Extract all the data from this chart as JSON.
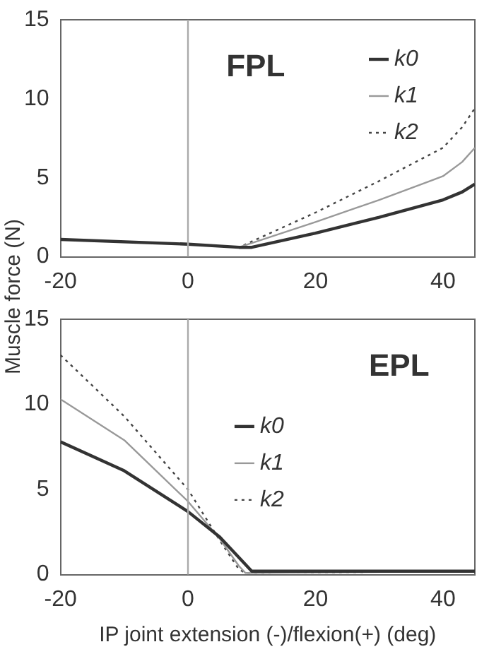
{
  "chart_data": [
    {
      "type": "line",
      "title": "FPL",
      "ylabel": "Muscle force (N)",
      "xlim": [
        -20,
        45
      ],
      "xticks": [
        -20,
        0,
        20,
        40
      ],
      "ylim": [
        0,
        15
      ],
      "yticks": [
        0,
        5,
        10,
        15
      ],
      "legend": "top right",
      "grid": false,
      "marker": "none",
      "ref_lines": [
        {
          "axis": "x",
          "value": 0,
          "color": "#aaaaaa"
        }
      ],
      "series": [
        {
          "name": "k0",
          "color": "#333333",
          "line_style": "solid",
          "x": [
            -20,
            0,
            8,
            10,
            20,
            30,
            40,
            43,
            45
          ],
          "values": [
            1.1,
            0.8,
            0.6,
            0.6,
            1.5,
            2.5,
            3.6,
            4.1,
            4.6
          ]
        },
        {
          "name": "k1",
          "color": "#999999",
          "line_style": "solid",
          "x": [
            -20,
            0,
            8,
            20,
            30,
            40,
            43,
            45
          ],
          "values": [
            1.1,
            0.8,
            0.6,
            2.2,
            3.6,
            5.1,
            6.0,
            6.9
          ]
        },
        {
          "name": "k2",
          "color": "#444444",
          "line_style": "dotted",
          "x": [
            -20,
            0,
            8,
            20,
            30,
            40,
            43,
            45
          ],
          "values": [
            1.1,
            0.8,
            0.6,
            2.8,
            4.8,
            6.9,
            8.2,
            9.4
          ]
        }
      ]
    },
    {
      "type": "line",
      "title": "EPL",
      "xlabel": "IP joint extension (-)/flexion(+) (deg)",
      "xlim": [
        -20,
        45
      ],
      "xticks": [
        -20,
        0,
        20,
        40
      ],
      "ylim": [
        0,
        15
      ],
      "yticks": [
        0,
        5,
        10,
        15
      ],
      "legend": "center",
      "grid": false,
      "marker": "none",
      "ref_lines": [
        {
          "axis": "x",
          "value": 0,
          "color": "#aaaaaa"
        }
      ],
      "series": [
        {
          "name": "k0",
          "color": "#333333",
          "line_style": "solid",
          "x": [
            -20,
            -10,
            0,
            5,
            10,
            11,
            45
          ],
          "values": [
            7.8,
            6.1,
            3.7,
            2.2,
            0.2,
            0.2,
            0.2
          ]
        },
        {
          "name": "k1",
          "color": "#999999",
          "line_style": "solid",
          "x": [
            -20,
            -10,
            0,
            5,
            8,
            9,
            45
          ],
          "values": [
            10.3,
            7.9,
            4.3,
            2.1,
            0.5,
            0.1,
            0.2
          ]
        },
        {
          "name": "k2",
          "color": "#444444",
          "line_style": "dotted",
          "x": [
            -20,
            -10,
            0,
            5,
            8,
            9,
            45
          ],
          "values": [
            12.9,
            9.3,
            5.0,
            2.0,
            0.3,
            0.1,
            0.2
          ]
        }
      ]
    }
  ]
}
